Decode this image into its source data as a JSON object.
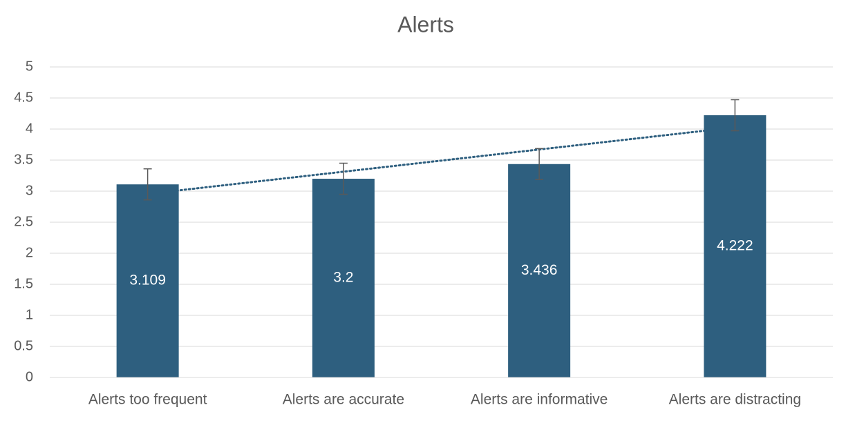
{
  "chart_data": {
    "type": "bar",
    "title": "Alerts",
    "categories": [
      "Alerts too frequent",
      "Alerts are accurate",
      "Alerts are informative",
      "Alerts are distracting"
    ],
    "values": [
      3.109,
      3.2,
      3.436,
      4.222
    ],
    "errors": [
      0.25,
      0.25,
      0.25,
      0.25
    ],
    "color": "#2e5f7f",
    "trendline": "linear",
    "ylim": [
      0,
      5
    ],
    "yticks": [
      0,
      0.5,
      1,
      1.5,
      2,
      2.5,
      3,
      3.5,
      4,
      4.5,
      5
    ],
    "grid": true
  }
}
